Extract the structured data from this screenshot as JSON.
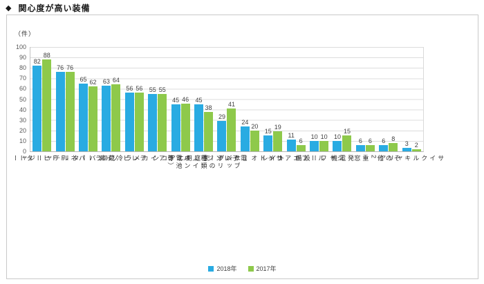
{
  "page": {
    "title_bullet": "◆",
    "title": "関心度が高い装備"
  },
  "chart_data": {
    "type": "bar",
    "title": "関心度が高い装備",
    "unit_label": "（件）",
    "categories": [
      "ＦＦヒーター",
      "ソーラーパネルチャージャー",
      "インバーター",
      "冷蔵庫",
      "テレビ",
      "バックアイカメラ",
      "家庭用エアコン",
      "サブバッテリーの種類\n（イオン電池等）",
      "電子レンジ",
      "サイドオーニング",
      "トイレ",
      "ルーフエアコン",
      "シャワー設備",
      "発電機",
      "2重窓",
      "その他",
      "サイクルキャリア"
    ],
    "series": [
      {
        "name": "2018年",
        "color": "#29ABE2",
        "values": [
          82,
          76,
          65,
          63,
          56,
          55,
          45,
          45,
          29,
          24,
          15,
          11,
          10,
          10,
          6,
          6,
          3
        ]
      },
      {
        "name": "2017年",
        "color": "#8EC94B",
        "values": [
          88,
          76,
          62,
          64,
          56,
          55,
          46,
          38,
          41,
          20,
          19,
          6,
          10,
          15,
          6,
          8,
          2
        ]
      }
    ],
    "ylim": [
      0,
      100
    ],
    "y_ticks": [
      0,
      10,
      20,
      30,
      40,
      50,
      60,
      70,
      80,
      90,
      100
    ],
    "grid": "horizontal",
    "legend_position": "bottom-center",
    "grid_color": "#dcdcdc"
  }
}
